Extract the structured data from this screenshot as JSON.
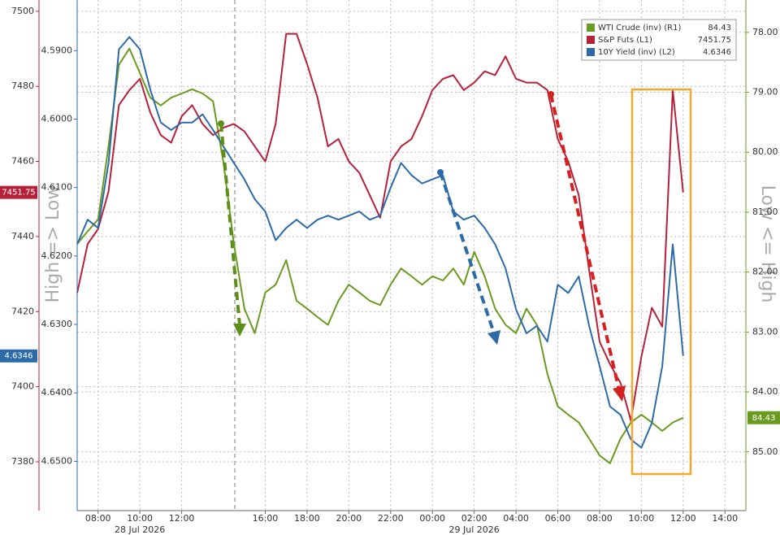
{
  "chart_data": {
    "type": "line",
    "x": [
      7,
      7.5,
      8,
      8.5,
      9,
      9.5,
      10,
      10.5,
      11,
      11.5,
      12,
      12.5,
      13,
      13.5,
      14,
      14.5,
      15,
      15.5,
      16,
      16.5,
      17,
      17.5,
      18,
      18.5,
      19,
      19.5,
      20,
      20.5,
      21,
      21.5,
      22,
      22.5,
      23,
      23.5,
      24,
      24.5,
      25,
      25.5,
      26,
      26.5,
      27,
      27.5,
      28,
      28.5,
      29,
      29.5,
      30,
      30.5,
      31,
      31.5,
      32,
      32.5,
      33,
      33.5,
      34,
      34.5,
      35,
      35.5,
      36
    ],
    "xlim": [
      7,
      39
    ],
    "xticks": [
      {
        "value": 8,
        "label": "08:00"
      },
      {
        "value": 10,
        "label": "10:00"
      },
      {
        "value": 12,
        "label": "12:00"
      },
      {
        "value": 16,
        "label": "16:00"
      },
      {
        "value": 18,
        "label": "18:00"
      },
      {
        "value": 20,
        "label": "20:00"
      },
      {
        "value": 22,
        "label": "22:00"
      },
      {
        "value": 24,
        "label": "00:00"
      },
      {
        "value": 26,
        "label": "02:00"
      },
      {
        "value": 28,
        "label": "04:00"
      },
      {
        "value": 30,
        "label": "06:00"
      },
      {
        "value": 32,
        "label": "08:00"
      },
      {
        "value": 34,
        "label": "10:00"
      },
      {
        "value": 36,
        "label": "12:00"
      },
      {
        "value": 38,
        "label": "14:00"
      }
    ],
    "date_labels": [
      {
        "x": 10,
        "label": "28 Jul 2026"
      },
      {
        "x": 26,
        "label": "29 Jul 2026"
      }
    ],
    "ylim": [
      7367,
      7503
    ],
    "yticks": [
      7380,
      7400,
      7420,
      7440,
      7460,
      7480,
      7500
    ],
    "y2lim": [
      4.6572,
      4.5826
    ],
    "y2ticks": [
      {
        "value": 4.59,
        "label": "4.5900"
      },
      {
        "value": 4.6,
        "label": "4.6000"
      },
      {
        "value": 4.61,
        "label": "4.6100"
      },
      {
        "value": 4.62,
        "label": "4.6200"
      },
      {
        "value": 4.63,
        "label": "4.6300"
      },
      {
        "value": 4.64,
        "label": "4.6400"
      },
      {
        "value": 4.65,
        "label": "4.6500"
      }
    ],
    "y3lim": [
      85.98,
      77.46
    ],
    "y3ticks": [
      {
        "value": 78,
        "label": "78.00"
      },
      {
        "value": 79,
        "label": "79.00"
      },
      {
        "value": 80,
        "label": "80.00"
      },
      {
        "value": 81,
        "label": "81.00"
      },
      {
        "value": 82,
        "label": "82.00"
      },
      {
        "value": 83,
        "label": "83.00"
      },
      {
        "value": 84,
        "label": "84.00"
      },
      {
        "value": 85,
        "label": "85.00"
      }
    ],
    "left_axis_label": "High => Low",
    "right_axis_label": "Low <= High",
    "grid": true,
    "legend": "upper right",
    "series": [
      {
        "name": "WTI Crude (inv) (R1)",
        "color": "#6a9a1f",
        "axis": "y3",
        "values": [
          81.53,
          81.32,
          81.12,
          79.9,
          78.54,
          78.27,
          78.68,
          79.09,
          79.22,
          79.09,
          79.02,
          78.95,
          79.02,
          79.15,
          80.17,
          81.53,
          82.61,
          83.02,
          82.34,
          82.21,
          81.8,
          82.48,
          82.61,
          82.75,
          82.88,
          82.48,
          82.21,
          82.34,
          82.48,
          82.55,
          82.21,
          81.94,
          82.07,
          82.21,
          82.07,
          82.14,
          81.94,
          82.21,
          81.66,
          82.07,
          82.61,
          82.88,
          83.02,
          82.61,
          82.88,
          83.7,
          84.24,
          84.38,
          84.51,
          84.78,
          85.06,
          85.19,
          84.78,
          84.51,
          84.38,
          84.51,
          84.65,
          84.51,
          84.43
        ]
      },
      {
        "name": "S&P Futs (L1)",
        "color": "#b5213a",
        "axis": "y",
        "values": [
          7425,
          7438,
          7442,
          7452,
          7475,
          7479,
          7482,
          7473,
          7467,
          7465,
          7472,
          7475,
          7470,
          7467,
          7469,
          7470,
          7468,
          7464,
          7460,
          7470,
          7494,
          7494,
          7486,
          7477,
          7464,
          7466,
          7460,
          7457,
          7451,
          7445,
          7460,
          7464,
          7466,
          7472,
          7479,
          7482,
          7483,
          7479,
          7481,
          7484,
          7483,
          7488,
          7482,
          7481,
          7481,
          7479,
          7466,
          7460,
          7451,
          7431,
          7412,
          7406,
          7401,
          7391,
          7408,
          7421,
          7416,
          7479,
          7451.75
        ]
      },
      {
        "name": "10Y Yield (inv) (L2)",
        "color": "#2d6ba8",
        "axis": "y2",
        "values": [
          4.6183,
          4.6147,
          4.6159,
          4.6064,
          4.5898,
          4.588,
          4.5898,
          4.5957,
          4.6005,
          4.6016,
          4.6005,
          4.6005,
          4.5993,
          4.6016,
          4.604,
          4.6064,
          4.6088,
          4.6117,
          4.6135,
          4.6177,
          4.6159,
          4.6147,
          4.6159,
          4.6147,
          4.6141,
          4.6147,
          4.6141,
          4.6135,
          4.6147,
          4.6141,
          4.61,
          4.6064,
          4.6082,
          4.6094,
          4.6088,
          4.6082,
          4.6135,
          4.6147,
          4.6141,
          4.6159,
          4.6183,
          4.6218,
          4.6278,
          4.6313,
          4.6302,
          4.6325,
          4.6242,
          4.6254,
          4.623,
          4.6302,
          4.6361,
          4.642,
          4.6432,
          4.6468,
          4.648,
          4.6444,
          4.6361,
          4.6183,
          4.6346
        ]
      }
    ]
  }
}
